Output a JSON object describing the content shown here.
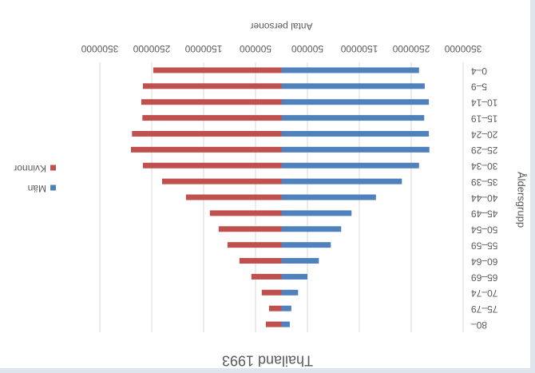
{
  "chart_data": {
    "type": "bar",
    "orientation": "horizontal",
    "stacked": true,
    "title": "Thailand 1993",
    "x_label": "Antal personer",
    "y_label": "Åldersgrupp",
    "categories": [
      "0–4",
      "5–9",
      "10–14",
      "15–19",
      "20–24",
      "25–29",
      "30–34",
      "35–39",
      "40–44",
      "45–49",
      "50–54",
      "55–59",
      "60–64",
      "65–69",
      "70–74",
      "75–79",
      "80–"
    ],
    "series": [
      {
        "name": "Män",
        "color": "#4f81bd",
        "values": [
          -2650000,
          -2760000,
          -2840000,
          -2750000,
          -2840000,
          -2850000,
          -2650000,
          -2320000,
          -1820000,
          -1350000,
          -1150000,
          -950000,
          -720000,
          -500000,
          -320000,
          -190000,
          -160000
        ]
      },
      {
        "name": "Kvinnor",
        "color": "#c0504d",
        "values": [
          2470000,
          2670000,
          2700000,
          2680000,
          2880000,
          2900000,
          2670000,
          2300000,
          1840000,
          1380000,
          1210000,
          1040000,
          810000,
          580000,
          380000,
          240000,
          300000
        ]
      }
    ],
    "xlim": [
      -3500000,
      3500000
    ],
    "xticks": [
      {
        "value": -3500000,
        "label": "3500000"
      },
      {
        "value": -2500000,
        "label": "2500000"
      },
      {
        "value": -1500000,
        "label": "1500000"
      },
      {
        "value": -500000,
        "label": "500000"
      },
      500000,
      1500000,
      2500000,
      3500000
    ],
    "grid": true,
    "legend": "right"
  }
}
